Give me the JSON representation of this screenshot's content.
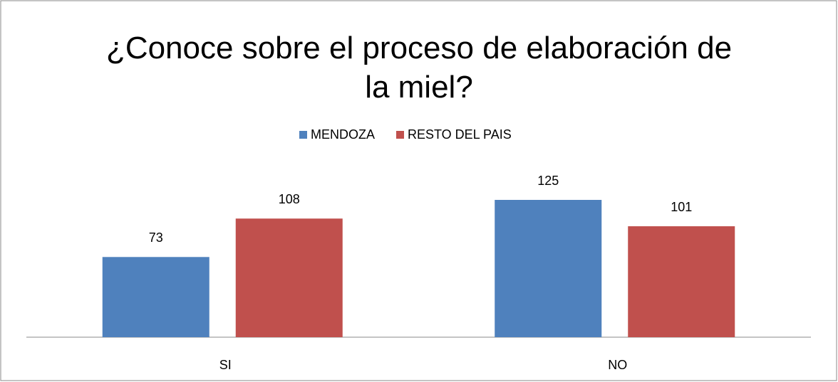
{
  "chart_data": {
    "type": "bar",
    "title": "¿Conoce sobre el proceso de elaboración de la miel?",
    "categories": [
      "SI",
      "NO"
    ],
    "series": [
      {
        "name": "MENDOZA",
        "color": "#4f81bd",
        "values": [
          73,
          125
        ]
      },
      {
        "name": "RESTO DEL PAIS",
        "color": "#c0504d",
        "values": [
          108,
          101
        ]
      }
    ],
    "legend": "top"
  }
}
